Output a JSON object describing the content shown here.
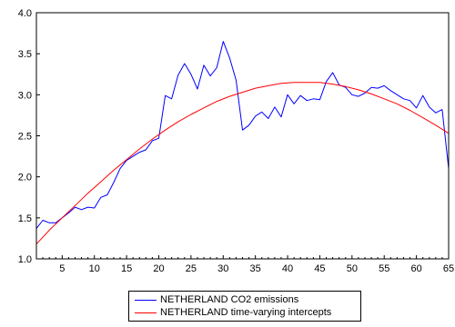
{
  "chart_data": {
    "type": "line",
    "title": "",
    "xlabel": "",
    "ylabel": "",
    "xlim": [
      1,
      65
    ],
    "ylim": [
      1.0,
      4.0
    ],
    "x_ticks": [
      5,
      10,
      15,
      20,
      25,
      30,
      35,
      40,
      45,
      50,
      55,
      60,
      65
    ],
    "y_ticks": [
      "1.0",
      "1.5",
      "2.0",
      "2.5",
      "3.0",
      "3.5",
      "4.0"
    ],
    "grid": false,
    "legend_position": "bottom-center",
    "series": [
      {
        "name": "NETHERLAND CO2 emissions",
        "color": "#0000ff",
        "x": [
          1,
          2,
          3,
          4,
          5,
          6,
          7,
          8,
          9,
          10,
          11,
          12,
          13,
          14,
          15,
          16,
          17,
          18,
          19,
          20,
          21,
          22,
          23,
          24,
          25,
          26,
          27,
          28,
          29,
          30,
          31,
          32,
          33,
          34,
          35,
          36,
          37,
          38,
          39,
          40,
          41,
          42,
          43,
          44,
          45,
          46,
          47,
          48,
          49,
          50,
          51,
          52,
          53,
          54,
          55,
          56,
          57,
          58,
          59,
          60,
          61,
          62,
          63,
          64,
          65
        ],
        "values": [
          1.37,
          1.47,
          1.44,
          1.44,
          1.5,
          1.56,
          1.63,
          1.6,
          1.63,
          1.62,
          1.75,
          1.78,
          1.93,
          2.1,
          2.2,
          2.25,
          2.3,
          2.33,
          2.44,
          2.47,
          2.99,
          2.95,
          3.24,
          3.38,
          3.25,
          3.07,
          3.36,
          3.23,
          3.33,
          3.65,
          3.45,
          3.18,
          2.57,
          2.63,
          2.74,
          2.79,
          2.71,
          2.85,
          2.73,
          3.0,
          2.89,
          2.99,
          2.93,
          2.95,
          2.94,
          3.16,
          3.27,
          3.12,
          3.09,
          3.0,
          2.98,
          3.02,
          3.09,
          3.08,
          3.11,
          3.05,
          3.0,
          2.95,
          2.93,
          2.84,
          2.99,
          2.85,
          2.78,
          2.82,
          2.1
        ]
      },
      {
        "name": "NETHERLAND time-varying intercepts",
        "color": "#ff0000",
        "x": [
          1,
          3,
          5,
          7,
          9,
          11,
          13,
          15,
          17,
          19,
          21,
          23,
          25,
          27,
          29,
          31,
          33,
          35,
          37,
          39,
          41,
          43,
          45,
          47,
          49,
          51,
          53,
          55,
          57,
          59,
          61,
          63,
          65
        ],
        "values": [
          1.18,
          1.35,
          1.5,
          1.65,
          1.8,
          1.94,
          2.08,
          2.21,
          2.34,
          2.46,
          2.57,
          2.67,
          2.76,
          2.84,
          2.92,
          2.98,
          3.03,
          3.08,
          3.11,
          3.14,
          3.15,
          3.15,
          3.15,
          3.13,
          3.1,
          3.06,
          3.01,
          2.95,
          2.89,
          2.81,
          2.72,
          2.63,
          2.53
        ]
      }
    ]
  }
}
